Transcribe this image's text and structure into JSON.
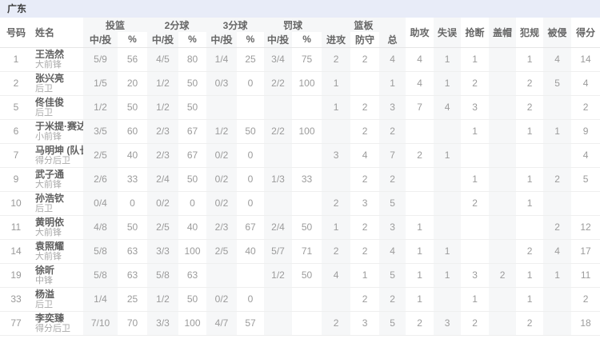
{
  "team_bar": {
    "title": "广东"
  },
  "colors": {
    "team_bar_bg": "#e8ecf8",
    "shade_column_bg": "#f6f7f8",
    "row_divider": "#efefef"
  },
  "table": {
    "headers": {
      "number": "号码",
      "name": "姓名",
      "fg": "投篮",
      "two_pt": "2分球",
      "three_pt": "3分球",
      "ft": "罚球",
      "rebounds": "篮板",
      "made_att": "中/投",
      "pct": "%",
      "off": "进攻",
      "def": "防守",
      "total": "总",
      "assists": "助攻",
      "turnovers": "失误",
      "steals": "抢断",
      "blocks": "盖帽",
      "fouls": "犯规",
      "fouled": "被侵",
      "points": "得分"
    },
    "rows": [
      {
        "number": "1",
        "name": "王浩然",
        "position": "大前锋",
        "stats": [
          "5/9",
          "56",
          "4/5",
          "80",
          "1/4",
          "25",
          "3/4",
          "75",
          "2",
          "2",
          "4",
          "4",
          "1",
          "1",
          "",
          "1",
          "4",
          "14"
        ]
      },
      {
        "number": "2",
        "name": "张兴亮",
        "position": "后卫",
        "stats": [
          "1/5",
          "20",
          "1/2",
          "50",
          "0/3",
          "0",
          "2/2",
          "100",
          "1",
          "",
          "1",
          "4",
          "1",
          "2",
          "",
          "2",
          "5",
          "4"
        ]
      },
      {
        "number": "5",
        "name": "佟佳俊",
        "position": "后卫",
        "stats": [
          "1/2",
          "50",
          "1/2",
          "50",
          "",
          "",
          "",
          "",
          "1",
          "2",
          "3",
          "7",
          "4",
          "3",
          "",
          "2",
          "",
          "2"
        ]
      },
      {
        "number": "6",
        "name": "于米提·赛达克",
        "position": "小前锋",
        "stats": [
          "3/5",
          "60",
          "2/3",
          "67",
          "1/2",
          "50",
          "2/2",
          "100",
          "",
          "2",
          "2",
          "",
          "",
          "1",
          "",
          "1",
          "1",
          "9"
        ]
      },
      {
        "number": "7",
        "name": "马明坤 (队长)",
        "position": "得分后卫",
        "stats": [
          "2/5",
          "40",
          "2/3",
          "67",
          "0/2",
          "0",
          "",
          "",
          "3",
          "4",
          "7",
          "2",
          "1",
          "",
          "",
          "",
          "",
          "4"
        ]
      },
      {
        "number": "9",
        "name": "武子通",
        "position": "大前锋",
        "stats": [
          "2/6",
          "33",
          "2/4",
          "50",
          "0/2",
          "0",
          "1/3",
          "33",
          "",
          "2",
          "2",
          "",
          "",
          "1",
          "",
          "1",
          "2",
          "5"
        ]
      },
      {
        "number": "10",
        "name": "孙浩钦",
        "position": "后卫",
        "stats": [
          "0/4",
          "0",
          "0/2",
          "0",
          "0/2",
          "0",
          "",
          "",
          "2",
          "3",
          "5",
          "",
          "",
          "2",
          "",
          "1",
          "",
          ""
        ]
      },
      {
        "number": "11",
        "name": "黄明依",
        "position": "大前锋",
        "stats": [
          "4/8",
          "50",
          "2/5",
          "40",
          "2/3",
          "67",
          "2/4",
          "50",
          "1",
          "2",
          "3",
          "1",
          "",
          "",
          "",
          "",
          "2",
          "12"
        ]
      },
      {
        "number": "14",
        "name": "袁照耀",
        "position": "大前锋",
        "stats": [
          "5/8",
          "63",
          "3/3",
          "100",
          "2/5",
          "40",
          "5/7",
          "71",
          "2",
          "2",
          "4",
          "1",
          "1",
          "",
          "",
          "2",
          "4",
          "17"
        ]
      },
      {
        "number": "19",
        "name": "徐昕",
        "position": "中锋",
        "stats": [
          "5/8",
          "63",
          "5/8",
          "63",
          "",
          "",
          "1/2",
          "50",
          "4",
          "1",
          "5",
          "1",
          "1",
          "3",
          "2",
          "1",
          "1",
          "11"
        ]
      },
      {
        "number": "33",
        "name": "杨溢",
        "position": "后卫",
        "stats": [
          "1/4",
          "25",
          "1/2",
          "50",
          "0/2",
          "0",
          "",
          "",
          "",
          "2",
          "2",
          "1",
          "",
          "1",
          "",
          "1",
          "",
          "2"
        ]
      },
      {
        "number": "77",
        "name": "李奕臻",
        "position": "得分后卫",
        "stats": [
          "7/10",
          "70",
          "3/3",
          "100",
          "4/7",
          "57",
          "",
          "",
          "2",
          "3",
          "5",
          "2",
          "3",
          "2",
          "",
          "2",
          "",
          "18"
        ]
      }
    ]
  }
}
